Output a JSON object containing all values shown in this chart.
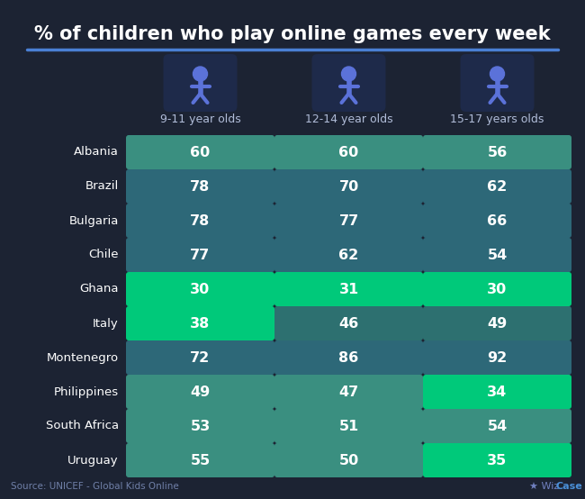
{
  "title": "% of children who play online games every week",
  "bg_color": "#1c2333",
  "title_color": "#ffffff",
  "accent_line_color": "#4a7fd4",
  "source_text": "Source: UNICEF - Global Kids Online",
  "columns": [
    "9-11 year olds",
    "12-14 year olds",
    "15-17 years olds"
  ],
  "countries": [
    "Albania",
    "Brazil",
    "Bulgaria",
    "Chile",
    "Ghana",
    "Italy",
    "Montenegro",
    "Philippines",
    "South Africa",
    "Uruguay"
  ],
  "values": [
    [
      60,
      60,
      56
    ],
    [
      78,
      70,
      62
    ],
    [
      78,
      77,
      66
    ],
    [
      77,
      62,
      54
    ],
    [
      30,
      31,
      30
    ],
    [
      38,
      46,
      49
    ],
    [
      72,
      86,
      92
    ],
    [
      49,
      47,
      34
    ],
    [
      53,
      51,
      54
    ],
    [
      55,
      50,
      35
    ]
  ],
  "cell_colors": [
    [
      "#3a8f80",
      "#3a8f80",
      "#3a8f80"
    ],
    [
      "#2d6878",
      "#2d6878",
      "#2d6878"
    ],
    [
      "#2d6878",
      "#2d6878",
      "#2d6878"
    ],
    [
      "#2d6878",
      "#2d6878",
      "#2d6878"
    ],
    [
      "#00c97a",
      "#00c97a",
      "#00c97a"
    ],
    [
      "#00c97a",
      "#2d7070",
      "#2d7070"
    ],
    [
      "#2d6878",
      "#2d6878",
      "#2d6878"
    ],
    [
      "#3a8f80",
      "#3a8f80",
      "#00c97a"
    ],
    [
      "#3a8f80",
      "#3a8f80",
      "#3a8f80"
    ],
    [
      "#3a8f80",
      "#3a8f80",
      "#00c97a"
    ]
  ],
  "col_header_color": "#b0bcd8",
  "icon_bg_color": "#1e2a4a",
  "icon_color": "#5b72d9",
  "wiz_color": "#7080c0",
  "case_color": "#4a90d9"
}
